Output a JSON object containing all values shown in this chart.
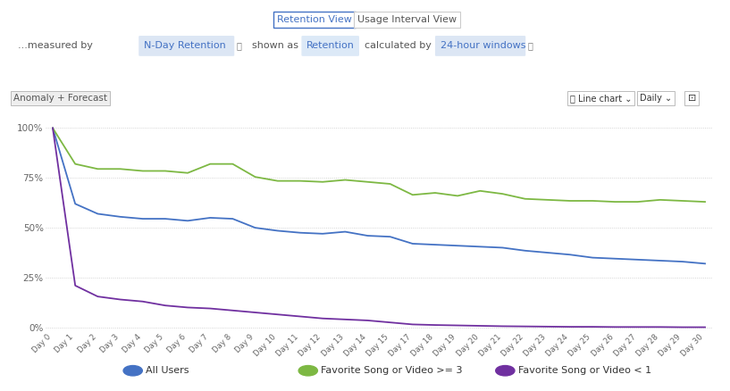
{
  "x_labels": [
    "Day 0",
    "Day 1",
    "Day 2",
    "Day 3",
    "Day 4",
    "Day 5",
    "Day 6",
    "Day 7",
    "Day 8",
    "Day 9",
    "Day 10",
    "Day 11",
    "Day 12",
    "Day 13",
    "Day 14",
    "Day 15",
    "Day 17",
    "Day 18",
    "Day 19",
    "Day 20",
    "Day 21",
    "Day 22",
    "Day 23",
    "Day 24",
    "Day 25",
    "Day 26",
    "Day 27",
    "Day 28",
    "Day 29",
    "Day 30"
  ],
  "all_users": [
    1.0,
    0.62,
    0.57,
    0.555,
    0.545,
    0.545,
    0.535,
    0.55,
    0.545,
    0.5,
    0.485,
    0.475,
    0.47,
    0.48,
    0.46,
    0.455,
    0.42,
    0.415,
    0.41,
    0.405,
    0.4,
    0.385,
    0.375,
    0.365,
    0.35,
    0.345,
    0.34,
    0.335,
    0.33,
    0.32
  ],
  "fav_ge3": [
    1.0,
    0.82,
    0.795,
    0.795,
    0.785,
    0.785,
    0.775,
    0.82,
    0.82,
    0.755,
    0.735,
    0.735,
    0.73,
    0.74,
    0.73,
    0.72,
    0.665,
    0.675,
    0.66,
    0.685,
    0.67,
    0.645,
    0.64,
    0.635,
    0.635,
    0.63,
    0.63,
    0.64,
    0.635,
    0.63
  ],
  "fav_lt1": [
    1.0,
    0.21,
    0.155,
    0.14,
    0.13,
    0.11,
    0.1,
    0.095,
    0.085,
    0.075,
    0.065,
    0.055,
    0.045,
    0.04,
    0.035,
    0.025,
    0.015,
    0.012,
    0.01,
    0.008,
    0.006,
    0.005,
    0.004,
    0.003,
    0.003,
    0.002,
    0.002,
    0.002,
    0.001,
    0.001
  ],
  "color_all_users": "#4472c4",
  "color_fav_ge3": "#7db843",
  "color_fav_lt1": "#7030a0",
  "bg_color": "#ffffff",
  "grid_color": "#c8c8c8",
  "yticks": [
    0.0,
    0.25,
    0.5,
    0.75,
    1.0
  ],
  "ytick_labels": [
    "0%",
    "25%",
    "50%",
    "75%",
    "100%"
  ],
  "legend_labels": [
    "All Users",
    "Favorite Song or Video >= 3",
    "Favorite Song or Video < 1"
  ],
  "legend_numbers": [
    "1",
    "2",
    "3"
  ],
  "retention_view": "Retention View",
  "usage_interval": "Usage Interval View",
  "measured_by": "...measured by",
  "n_day_retention": "N-Day Retention",
  "shown_as": "shown as",
  "retention_lbl": "Retention",
  "calculated_by": "calculated by",
  "windows": "24-hour windows",
  "anomaly_btn": "Anomaly + Forecast",
  "linechart_btn": "Line chart ⌄",
  "daily_btn": "Daily ⌄",
  "highlight_bg": "#dce6f4",
  "retention_highlight": "#dce9f7",
  "separator_color": "#e0e0e0",
  "btn_border": "#bbbbbb",
  "active_border": "#4472c4",
  "ctrl_bg": "#eeeeee"
}
